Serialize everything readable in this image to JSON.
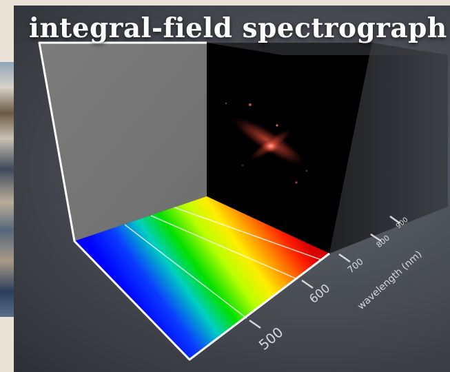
{
  "slide": {
    "title": "integral-field spectrograph"
  },
  "axis": {
    "label": "wavelength (nm)",
    "ticks": [
      "500",
      "600",
      "700",
      "800",
      "900"
    ]
  },
  "colors": {
    "background": "#45484f",
    "cube_side": "#2a2c30",
    "image_face": "#000000",
    "grey_wall": "#777777",
    "frame": "#ffffff"
  }
}
